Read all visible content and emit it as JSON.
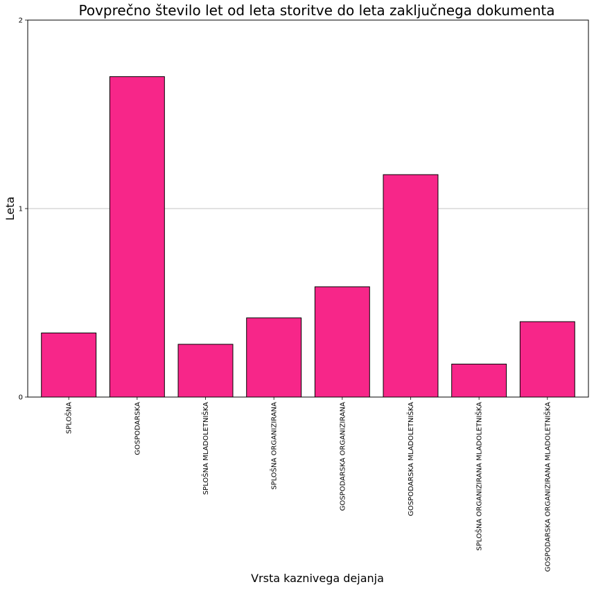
{
  "chart_data": {
    "type": "bar",
    "title": "Povprečno število let od leta storitve do leta zaključnega dokumenta",
    "xlabel": "Vrsta kaznivega dejanja",
    "ylabel": "Leta",
    "ylim": [
      0,
      2
    ],
    "yticks": [
      "0",
      "1",
      "2"
    ],
    "grid": "y-major",
    "bar_color": "#f72689",
    "edge_color": "#000000",
    "categories": [
      "SPLOŠNA",
      "GOSPODARSKA",
      "SPLOŠNA MLADOLETNIŠKA",
      "SPLOŠNA ORGANIZIRANA",
      "GOSPODARSKA ORGANIZIRANA",
      "GOSPODARSKA MLADOLETNIŠKA",
      "SPLOŠNA ORGANIZIRANA MLADOLETNIŠKA",
      "GOSPODARSKA ORGANIZIRANA MLADOLETNIŠKA"
    ],
    "values": [
      0.34,
      1.7,
      0.28,
      0.42,
      0.585,
      1.18,
      0.175,
      0.4
    ]
  }
}
